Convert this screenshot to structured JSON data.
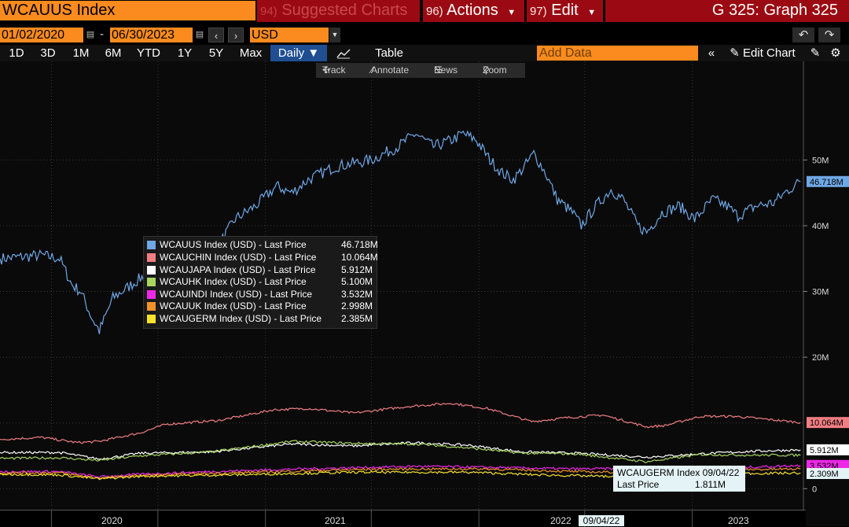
{
  "header": {
    "security": "WCAUUS Index",
    "suggested_num": "94)",
    "suggested_label": "Suggested Charts",
    "actions_num": "96)",
    "actions_label": "Actions",
    "edit_num": "97)",
    "edit_label": "Edit",
    "page_title": "G 325: Graph 325"
  },
  "controls": {
    "start_date": "01/02/2020",
    "end_date": "06/30/2023",
    "currency": "USD",
    "ranges": [
      "1D",
      "3D",
      "1M",
      "6M",
      "YTD",
      "1Y",
      "5Y",
      "Max"
    ],
    "frequency": "Daily",
    "table_label": "Table",
    "add_data_placeholder": "Add Data",
    "edit_chart_label": "Edit Chart"
  },
  "chart_tools": {
    "track": "Track",
    "annotate": "Annotate",
    "news": "News",
    "zoom": "Zoom"
  },
  "tooltip": {
    "line1": "WCAUGERM Index 09/04/22",
    "line2_label": "Last Price",
    "line2_value": "1.811M",
    "x_tag": "09/04/22"
  },
  "chart_data": {
    "type": "line",
    "x_range": [
      "2019-10-05",
      "2023-07-10"
    ],
    "ylim": [
      -2,
      65
    ],
    "y_ticks": [
      {
        "v": 0,
        "label": "0"
      },
      {
        "v": 10,
        "label": ""
      },
      {
        "v": 20,
        "label": "20M"
      },
      {
        "v": 30,
        "label": "30M"
      },
      {
        "v": 40,
        "label": "40M"
      },
      {
        "v": 50,
        "label": "50M"
      }
    ],
    "x_ticks": [
      "2020-01-01",
      "2020-07-01",
      "2021-01-01",
      "2021-07-01",
      "2022-01-01",
      "2022-07-01",
      "2023-01-01"
    ],
    "x_labels": [
      {
        "label": "2020",
        "date": "2020-04-01"
      },
      {
        "label": "2021",
        "date": "2021-04-01"
      },
      {
        "label": "2022",
        "date": "2022-04-01"
      },
      {
        "label": "2023",
        "date": "2023-04-01"
      }
    ],
    "series": [
      {
        "name": "WCAUUS Index (USD) - Last Price",
        "last": "46.718M",
        "color": "#6fa8e6",
        "points": [
          [
            "2019-10-05",
            35
          ],
          [
            "2019-12-15",
            35.5
          ],
          [
            "2020-01-15",
            35
          ],
          [
            "2020-02-05",
            31
          ],
          [
            "2020-02-20",
            30
          ],
          [
            "2020-03-10",
            26
          ],
          [
            "2020-03-23",
            24
          ],
          [
            "2020-04-15",
            29
          ],
          [
            "2020-06-01",
            32
          ],
          [
            "2020-07-15",
            34
          ],
          [
            "2020-08-15",
            36
          ],
          [
            "2020-09-15",
            38
          ],
          [
            "2020-10-01",
            36
          ],
          [
            "2020-10-20",
            38
          ],
          [
            "2020-11-10",
            41
          ],
          [
            "2020-12-15",
            43
          ],
          [
            "2021-01-20",
            46
          ],
          [
            "2021-02-15",
            45
          ],
          [
            "2021-03-15",
            47
          ],
          [
            "2021-05-01",
            49
          ],
          [
            "2021-07-01",
            50
          ],
          [
            "2021-08-15",
            52
          ],
          [
            "2021-09-15",
            54
          ],
          [
            "2021-10-15",
            52
          ],
          [
            "2021-11-15",
            53
          ],
          [
            "2021-12-05",
            54
          ],
          [
            "2021-12-28",
            53
          ],
          [
            "2022-01-20",
            50
          ],
          [
            "2022-02-10",
            48
          ],
          [
            "2022-03-01",
            47
          ],
          [
            "2022-03-20",
            49
          ],
          [
            "2022-04-05",
            51
          ],
          [
            "2022-04-25",
            48
          ],
          [
            "2022-05-15",
            44
          ],
          [
            "2022-06-10",
            42
          ],
          [
            "2022-06-25",
            40
          ],
          [
            "2022-07-20",
            43
          ],
          [
            "2022-08-15",
            45.5
          ],
          [
            "2022-09-05",
            44
          ],
          [
            "2022-09-30",
            40
          ],
          [
            "2022-10-15",
            39
          ],
          [
            "2022-11-10",
            42
          ],
          [
            "2022-12-10",
            43
          ],
          [
            "2023-01-05",
            41
          ],
          [
            "2023-02-05",
            44
          ],
          [
            "2023-03-01",
            43
          ],
          [
            "2023-03-20",
            41.5
          ],
          [
            "2023-04-20",
            43
          ],
          [
            "2023-05-20",
            43.5
          ],
          [
            "2023-06-15",
            45.5
          ],
          [
            "2023-07-05",
            46.7
          ]
        ]
      },
      {
        "name": "WCAUCHIN Index (USD) - Last Price",
        "last": "10.064M",
        "color": "#f07e83",
        "points": [
          [
            "2019-10-05",
            7.5
          ],
          [
            "2019-12-15",
            7.8
          ],
          [
            "2020-02-15",
            7
          ],
          [
            "2020-03-23",
            7.2
          ],
          [
            "2020-06-01",
            8.5
          ],
          [
            "2020-07-15",
            9.8
          ],
          [
            "2020-10-15",
            10.4
          ],
          [
            "2021-01-15",
            12
          ],
          [
            "2021-03-15",
            12.2
          ],
          [
            "2021-06-01",
            11.5
          ],
          [
            "2021-09-01",
            12.5
          ],
          [
            "2021-11-15",
            13
          ],
          [
            "2022-01-15",
            12.2
          ],
          [
            "2022-04-01",
            10.2
          ],
          [
            "2022-06-01",
            10.8
          ],
          [
            "2022-08-01",
            11.2
          ],
          [
            "2022-10-15",
            9.4
          ],
          [
            "2022-11-15",
            9.6
          ],
          [
            "2023-01-15",
            11
          ],
          [
            "2023-03-15",
            11
          ],
          [
            "2023-05-15",
            10.5
          ],
          [
            "2023-07-05",
            10.06
          ]
        ]
      },
      {
        "name": "WCAUJAPA Index (USD) - Last Price",
        "last": "5.912M",
        "color": "#ffffff",
        "points": [
          [
            "2019-10-05",
            5.5
          ],
          [
            "2020-01-15",
            5.5
          ],
          [
            "2020-03-23",
            4.5
          ],
          [
            "2020-06-01",
            5.4
          ],
          [
            "2020-10-01",
            5.6
          ],
          [
            "2021-02-15",
            6.8
          ],
          [
            "2021-06-01",
            6.5
          ],
          [
            "2021-09-15",
            7
          ],
          [
            "2021-12-15",
            6.6
          ],
          [
            "2022-03-15",
            5.6
          ],
          [
            "2022-06-15",
            5.4
          ],
          [
            "2022-10-15",
            4.8
          ],
          [
            "2023-01-15",
            5.3
          ],
          [
            "2023-04-15",
            5.7
          ],
          [
            "2023-07-05",
            5.9
          ]
        ]
      },
      {
        "name": "WCAUHK Index (USD) - Last Price",
        "last": "5.100M",
        "color": "#a7d65f",
        "points": [
          [
            "2019-10-05",
            4.6
          ],
          [
            "2020-01-15",
            4.7
          ],
          [
            "2020-03-23",
            4.3
          ],
          [
            "2020-06-01",
            5
          ],
          [
            "2020-10-01",
            5.6
          ],
          [
            "2021-02-15",
            7.2
          ],
          [
            "2021-06-01",
            6.9
          ],
          [
            "2021-09-15",
            6.8
          ],
          [
            "2021-12-15",
            6.2
          ],
          [
            "2022-03-15",
            5.4
          ],
          [
            "2022-06-15",
            5.3
          ],
          [
            "2022-10-15",
            4.1
          ],
          [
            "2023-01-15",
            5.2
          ],
          [
            "2023-04-15",
            5.1
          ],
          [
            "2023-07-05",
            5.1
          ]
        ]
      },
      {
        "name": "WCAUINDI Index (USD) - Last Price",
        "last": "3.532M",
        "color": "#ee28e8",
        "points": [
          [
            "2019-10-05",
            2.6
          ],
          [
            "2020-01-15",
            2.6
          ],
          [
            "2020-03-23",
            1.8
          ],
          [
            "2020-06-01",
            2.2
          ],
          [
            "2020-10-01",
            2.6
          ],
          [
            "2021-03-01",
            3
          ],
          [
            "2021-09-15",
            3.4
          ],
          [
            "2021-12-15",
            3.3
          ],
          [
            "2022-06-15",
            3
          ],
          [
            "2022-10-15",
            3.1
          ],
          [
            "2023-03-15",
            3.2
          ],
          [
            "2023-07-05",
            3.53
          ]
        ]
      },
      {
        "name": "WCAUUK Index (USD) - Last Price",
        "last": "2.998M",
        "color": "#f0932b",
        "points": [
          [
            "2019-10-05",
            2.4
          ],
          [
            "2020-01-15",
            2.4
          ],
          [
            "2020-03-23",
            1.6
          ],
          [
            "2020-06-01",
            2
          ],
          [
            "2020-11-01",
            2.4
          ],
          [
            "2021-06-01",
            2.9
          ],
          [
            "2021-09-15",
            3
          ],
          [
            "2022-01-15",
            3
          ],
          [
            "2022-06-15",
            2.6
          ],
          [
            "2022-10-15",
            2.4
          ],
          [
            "2023-03-15",
            2.9
          ],
          [
            "2023-07-05",
            3
          ]
        ]
      },
      {
        "name": "WCAUGERM Index (USD) - Last Price",
        "last": "2.385M",
        "color": "#f7e22d",
        "points": [
          [
            "2019-10-05",
            2.2
          ],
          [
            "2020-01-15",
            2.1
          ],
          [
            "2020-03-23",
            1.5
          ],
          [
            "2020-06-01",
            1.9
          ],
          [
            "2020-11-01",
            2.1
          ],
          [
            "2021-06-01",
            2.5
          ],
          [
            "2021-12-15",
            2.5
          ],
          [
            "2022-04-15",
            2.1
          ],
          [
            "2022-09-04",
            1.81
          ],
          [
            "2022-11-15",
            2
          ],
          [
            "2023-03-15",
            2.3
          ],
          [
            "2023-07-05",
            2.39
          ]
        ]
      }
    ],
    "right_tags": [
      {
        "text": "46.718M",
        "v": 46.718,
        "bg": "#6fa8e6",
        "fg": "#000000"
      },
      {
        "text": "10.064M",
        "v": 10.064,
        "bg": "#f07e83",
        "fg": "#000000"
      },
      {
        "text": "5.912M",
        "v": 5.912,
        "bg": "#ffffff",
        "fg": "#000000"
      },
      {
        "text": "3.532M",
        "v": 3.532,
        "bg": "#ee28e8",
        "fg": "#000000"
      },
      {
        "text": "2.309M",
        "v": 2.309,
        "bg": "#e4f3f6",
        "fg": "#000000"
      }
    ]
  }
}
